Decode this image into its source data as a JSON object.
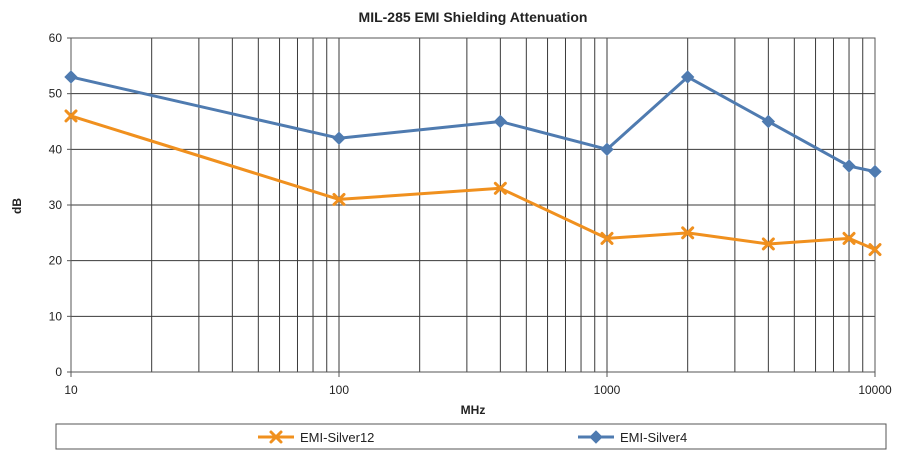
{
  "chart_data": {
    "type": "line",
    "title": "MIL-285 EMI Shielding Attenuation",
    "xlabel": "MHz",
    "ylabel": "dB",
    "xscale": "log",
    "xlim": [
      10,
      10000
    ],
    "ylim": [
      0,
      60
    ],
    "xticks": [
      "10",
      "100",
      "1000",
      "10000"
    ],
    "yticks": [
      "0",
      "10",
      "20",
      "30",
      "40",
      "50",
      "60"
    ],
    "grid": true,
    "legend": "bottom",
    "x": [
      10,
      100,
      400,
      1000,
      2000,
      4000,
      8000,
      10000
    ],
    "series": [
      {
        "name": "EMI-Silver12",
        "color": "#f0901e",
        "marker": "x",
        "values": [
          46,
          31,
          33,
          24,
          25,
          23,
          24,
          22
        ]
      },
      {
        "name": "EMI-Silver4",
        "color": "#4f7bb0",
        "marker": "diamond",
        "values": [
          53,
          42,
          45,
          40,
          53,
          45,
          37,
          36
        ]
      }
    ]
  }
}
